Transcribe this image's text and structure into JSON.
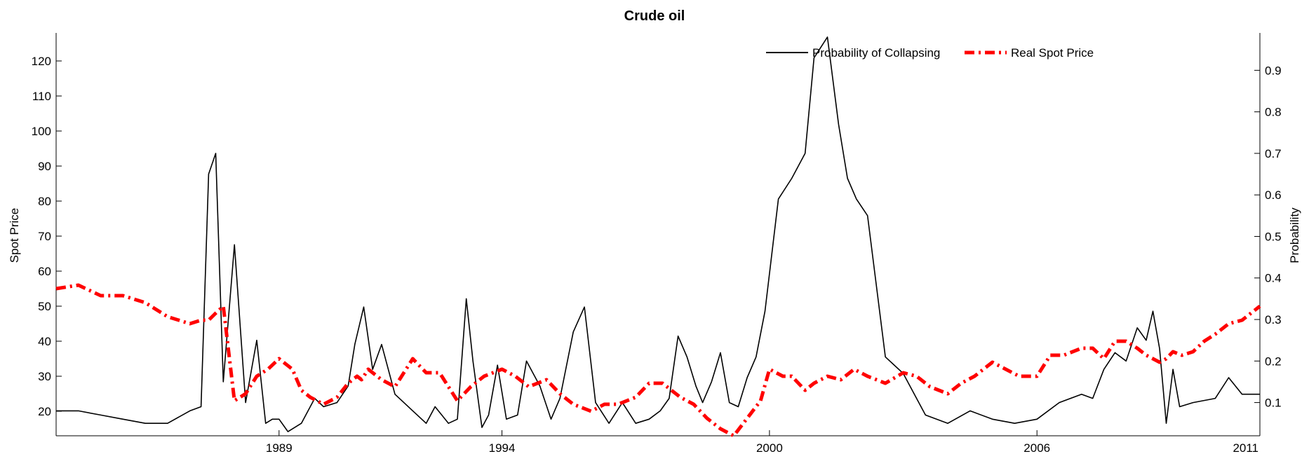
{
  "chart_data": {
    "type": "line",
    "title": "Crude oil",
    "ylabel_left": "Spot Price",
    "ylabel_right": "Probability",
    "xlabel": "",
    "x_range": [
      1984.0,
      2011.0
    ],
    "x_ticks": [
      1989,
      1994,
      2000,
      2006,
      2011
    ],
    "x_tick_labels": [
      "1989",
      "1994",
      "2000",
      "2006",
      "2011"
    ],
    "ylim_left": [
      13,
      128
    ],
    "y_ticks_left": [
      20,
      30,
      40,
      50,
      60,
      70,
      80,
      90,
      100,
      110,
      120
    ],
    "y_tick_labels_left": [
      "20",
      "30",
      "40",
      "50",
      "60",
      "70",
      "80",
      "90",
      "100",
      "110",
      "120"
    ],
    "ylim_right": [
      0.02,
      0.99
    ],
    "y_ticks_right": [
      0.1,
      0.2,
      0.3,
      0.4,
      0.5,
      0.6,
      0.7,
      0.8,
      0.9
    ],
    "y_tick_labels_right": [
      "0.1",
      "0.2",
      "0.3",
      "0.4",
      "0.5",
      "0.6",
      "0.7",
      "0.8",
      "0.9"
    ],
    "grid": false,
    "legend_position": "top-right",
    "series": [
      {
        "name": "Probability of Collapsing",
        "axis": "right",
        "color": "#000000",
        "style": "solid",
        "x": [
          1984.0,
          1984.5,
          1985.0,
          1985.5,
          1986.0,
          1986.5,
          1987.0,
          1987.25,
          1987.42,
          1987.58,
          1987.75,
          1988.0,
          1988.25,
          1988.5,
          1988.7,
          1988.85,
          1989.0,
          1989.2,
          1989.5,
          1989.8,
          1990.0,
          1990.3,
          1990.55,
          1990.7,
          1990.9,
          1991.1,
          1991.3,
          1991.6,
          1992.0,
          1992.3,
          1992.5,
          1992.8,
          1993.0,
          1993.2,
          1993.35,
          1993.55,
          1993.7,
          1993.9,
          1994.1,
          1994.35,
          1994.55,
          1994.85,
          1995.1,
          1995.3,
          1995.6,
          1995.85,
          1996.1,
          1996.4,
          1996.7,
          1997.0,
          1997.3,
          1997.55,
          1997.75,
          1997.95,
          1998.15,
          1998.35,
          1998.5,
          1998.7,
          1998.9,
          1999.1,
          1999.3,
          1999.5,
          1999.7,
          1999.9,
          2000.2,
          2000.5,
          2000.8,
          2001.0,
          2001.3,
          2001.55,
          2001.75,
          2001.95,
          2002.2,
          2002.6,
          2003.0,
          2003.5,
          2004.0,
          2004.5,
          2005.0,
          2005.5,
          2006.0,
          2006.5,
          2007.0,
          2007.25,
          2007.5,
          2007.75,
          2008.0,
          2008.25,
          2008.45,
          2008.6,
          2008.75,
          2008.9,
          2009.05,
          2009.2,
          2009.5,
          2010.0,
          2010.3,
          2010.6,
          2010.8,
          2011.0
        ],
        "y": [
          0.08,
          0.08,
          0.07,
          0.06,
          0.05,
          0.05,
          0.08,
          0.09,
          0.65,
          0.7,
          0.15,
          0.48,
          0.1,
          0.25,
          0.05,
          0.06,
          0.06,
          0.03,
          0.05,
          0.11,
          0.09,
          0.1,
          0.14,
          0.24,
          0.33,
          0.18,
          0.24,
          0.12,
          0.08,
          0.05,
          0.09,
          0.05,
          0.06,
          0.35,
          0.2,
          0.04,
          0.07,
          0.19,
          0.06,
          0.07,
          0.2,
          0.14,
          0.06,
          0.11,
          0.27,
          0.33,
          0.1,
          0.05,
          0.1,
          0.05,
          0.06,
          0.08,
          0.11,
          0.26,
          0.21,
          0.14,
          0.1,
          0.15,
          0.22,
          0.1,
          0.09,
          0.16,
          0.21,
          0.32,
          0.59,
          0.64,
          0.7,
          0.93,
          0.98,
          0.77,
          0.64,
          0.59,
          0.55,
          0.21,
          0.17,
          0.07,
          0.05,
          0.08,
          0.06,
          0.05,
          0.06,
          0.1,
          0.12,
          0.11,
          0.18,
          0.22,
          0.2,
          0.28,
          0.25,
          0.32,
          0.23,
          0.05,
          0.18,
          0.09,
          0.1,
          0.11,
          0.16,
          0.12,
          0.12,
          0.12
        ]
      },
      {
        "name": "Real Spot Price",
        "axis": "left",
        "color": "#ff0000",
        "style": "dashdot",
        "x": [
          1984.0,
          1984.5,
          1985.0,
          1985.5,
          1986.0,
          1986.5,
          1987.0,
          1987.25,
          1987.42,
          1987.58,
          1987.75,
          1988.0,
          1988.25,
          1988.5,
          1988.75,
          1989.0,
          1989.3,
          1989.5,
          1989.7,
          1990.0,
          1990.3,
          1990.55,
          1990.75,
          1990.85,
          1991.0,
          1991.3,
          1991.6,
          1992.0,
          1992.3,
          1992.6,
          1993.0,
          1993.3,
          1993.6,
          1994.0,
          1994.3,
          1994.6,
          1995.0,
          1995.3,
          1995.6,
          1996.0,
          1996.3,
          1996.6,
          1997.0,
          1997.3,
          1997.6,
          1998.0,
          1998.3,
          1998.6,
          1998.9,
          1999.2,
          1999.5,
          1999.8,
          2000.0,
          2000.3,
          2000.5,
          2000.8,
          2001.0,
          2001.3,
          2001.6,
          2001.9,
          2002.2,
          2002.6,
          2003.0,
          2003.3,
          2003.6,
          2004.0,
          2004.3,
          2004.6,
          2005.0,
          2005.3,
          2005.6,
          2006.0,
          2006.3,
          2006.6,
          2007.0,
          2007.25,
          2007.5,
          2007.75,
          2008.0,
          2008.25,
          2008.45,
          2008.6,
          2008.75,
          2008.9,
          2009.05,
          2009.25,
          2009.5,
          2009.75,
          2010.0,
          2010.3,
          2010.6,
          2010.8,
          2011.0
        ],
        "y": [
          55,
          56,
          53,
          53,
          51,
          47,
          45,
          46,
          46,
          48,
          50,
          23,
          25,
          30,
          32,
          35,
          32,
          26,
          24,
          22,
          24,
          28,
          30,
          29,
          32,
          29,
          27,
          35,
          31,
          31,
          23,
          27,
          30,
          32,
          30,
          27,
          29,
          25,
          22,
          20,
          22,
          22,
          24,
          28,
          28,
          24,
          22,
          18,
          15,
          13,
          18,
          23,
          32,
          30,
          30,
          26,
          28,
          30,
          29,
          32,
          30,
          28,
          31,
          30,
          27,
          25,
          28,
          30,
          34,
          32,
          30,
          30,
          36,
          36,
          38,
          38,
          35,
          40,
          40,
          38,
          36,
          35,
          34,
          35,
          37,
          36,
          37,
          40,
          42,
          45,
          46,
          48,
          50
        ]
      }
    ]
  }
}
